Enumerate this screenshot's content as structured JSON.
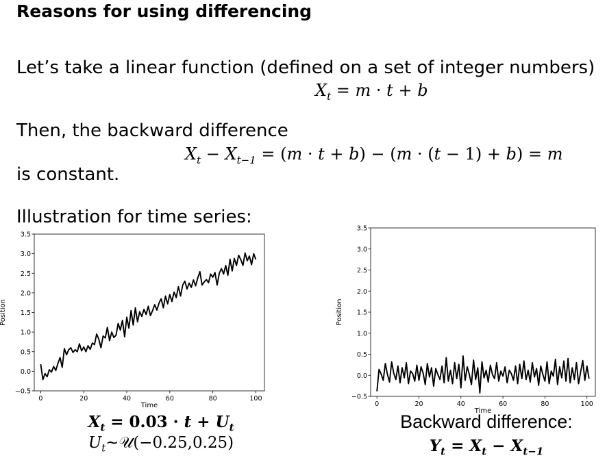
{
  "slide": {
    "title": "Reasons for using differencing",
    "intro": "Let’s take a linear function (defined on a set of integer numbers)",
    "formula_linear": "X_t = m · t + b",
    "then": "Then, the backward difference",
    "formula_diff": "X_t − X_{t−1} = (m · t + b) − (m · (t − 1) + b) = m",
    "is_constant": "is constant.",
    "illustration": "Illustration for time series:"
  },
  "captions": {
    "left_line1": "X_t = 0.03 · t + U_t",
    "left_line2": "U_t~𝒰(−0.25,0.25)",
    "right_line1": "Backward difference:",
    "right_line2": "Y_t = X_t − X_{t−1}"
  },
  "chart_data": [
    {
      "type": "line",
      "xlabel": "Time",
      "ylabel": "Position",
      "xlim": [
        -3,
        104
      ],
      "ylim": [
        -0.5,
        3.5
      ],
      "xticks": [
        0,
        20,
        40,
        60,
        80,
        100
      ],
      "yticks": [
        -0.5,
        0.0,
        0.5,
        1.0,
        1.5,
        2.0,
        2.5,
        3.0,
        3.5
      ],
      "xtick_labels": [
        "0",
        "20",
        "40",
        "60",
        "80",
        "100"
      ],
      "ytick_labels": [
        "−0.5",
        "0.0",
        "0.5",
        "1.0",
        "1.5",
        "2.0",
        "2.5",
        "3.0",
        "3.5"
      ],
      "series": [
        {
          "color": "#000000",
          "values": [
            0.18,
            -0.21,
            -0.06,
            -0.14,
            0.04,
            -0.02,
            0.12,
            0.02,
            0.2,
            0.35,
            0.1,
            0.58,
            0.42,
            0.55,
            0.6,
            0.48,
            0.55,
            0.5,
            0.7,
            0.52,
            0.62,
            0.5,
            0.65,
            0.56,
            0.72,
            0.68,
            0.95,
            0.82,
            0.6,
            0.9,
            0.85,
            1.12,
            0.78,
            1.0,
            0.86,
            0.92,
            1.22,
            1.05,
            1.3,
            0.88,
            1.38,
            1.1,
            1.55,
            1.18,
            1.62,
            1.26,
            1.52,
            1.4,
            1.58,
            1.45,
            1.66,
            1.42,
            1.55,
            1.7,
            1.56,
            1.74,
            1.85,
            1.62,
            1.92,
            1.72,
            1.96,
            1.78,
            2.02,
            1.88,
            2.16,
            1.92,
            2.2,
            2.3,
            2.1,
            2.25,
            2.14,
            2.33,
            2.18,
            2.38,
            2.54,
            2.2,
            2.28,
            2.34,
            2.26,
            2.48,
            2.4,
            2.52,
            2.2,
            2.5,
            2.62,
            2.48,
            2.7,
            2.45,
            2.86,
            2.56,
            2.88,
            2.7,
            2.96,
            2.85,
            2.7,
            3.02,
            2.82,
            2.94,
            2.72,
            3.0,
            2.85
          ]
        }
      ]
    },
    {
      "type": "line",
      "xlabel": "Time",
      "ylabel": "Position",
      "xlim": [
        -3,
        104
      ],
      "ylim": [
        -0.5,
        3.5
      ],
      "xticks": [
        0,
        20,
        40,
        60,
        80,
        100
      ],
      "yticks": [
        -0.5,
        0.0,
        0.5,
        1.0,
        1.5,
        2.0,
        2.5,
        3.0,
        3.5
      ],
      "xtick_labels": [
        "0",
        "20",
        "40",
        "60",
        "80",
        "100"
      ],
      "ytick_labels": [
        "−0.5",
        "0.0",
        "0.5",
        "1.0",
        "1.5",
        "2.0",
        "2.5",
        "3.0",
        "3.5"
      ],
      "series": [
        {
          "color": "#000000",
          "values": [
            -0.38,
            0.14,
            0.03,
            -0.12,
            0.28,
            0.02,
            -0.16,
            0.32,
            0.05,
            -0.1,
            0.22,
            -0.18,
            0.18,
            -0.06,
            0.3,
            -0.2,
            0.1,
            0.04,
            -0.14,
            0.24,
            -0.12,
            0.2,
            0.05,
            -0.22,
            0.28,
            -0.04,
            0.18,
            -0.26,
            0.16,
            0.02,
            -0.1,
            0.22,
            -0.18,
            0.42,
            -0.14,
            0.12,
            -0.2,
            0.3,
            -0.08,
            0.26,
            -0.3,
            0.46,
            -0.12,
            0.2,
            0.02,
            -0.22,
            0.36,
            -0.1,
            0.18,
            -0.42,
            0.32,
            -0.06,
            0.12,
            -0.16,
            0.24,
            0.02,
            -0.08,
            0.3,
            -0.14,
            0.1,
            -0.02,
            0.2,
            -0.18,
            0.12,
            0.04,
            -0.12,
            0.22,
            -0.2,
            0.26,
            -0.08,
            0.34,
            -0.1,
            0.12,
            -0.16,
            0.3,
            -0.04,
            0.16,
            -0.24,
            0.22,
            0.02,
            -0.14,
            0.32,
            -0.2,
            0.1,
            -0.02,
            0.38,
            -0.22,
            0.2,
            -0.06,
            0.34,
            -0.14,
            0.4,
            -0.18,
            0.18,
            -0.1,
            0.3,
            -0.2,
            0.08,
            0.35,
            -0.12,
            0.22,
            -0.08
          ]
        }
      ]
    }
  ]
}
